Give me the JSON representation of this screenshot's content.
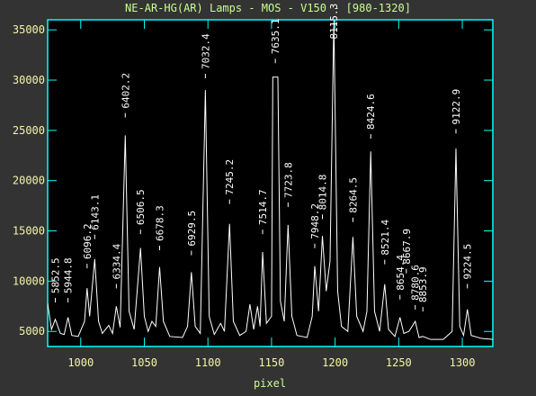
{
  "chart_data": {
    "type": "line",
    "title": "NE-AR-HG(AR) Lamps - MOS - V150 - [980-1320]",
    "xlabel": "pixel",
    "xlim": [
      974,
      1324
    ],
    "ylim": [
      3500,
      36000
    ],
    "xticks": [
      1000,
      1050,
      1100,
      1150,
      1200,
      1250,
      1300
    ],
    "yticks": [
      5000,
      10000,
      15000,
      20000,
      25000,
      30000,
      35000
    ],
    "series": [
      {
        "color": "#ffffff",
        "x": [
          974,
          977,
          980,
          984,
          987,
          990,
          993,
          998,
          1003,
          1005,
          1007,
          1011,
          1014,
          1017,
          1022,
          1025,
          1028,
          1031,
          1035,
          1038,
          1042,
          1047,
          1050,
          1053,
          1056,
          1059,
          1062,
          1065,
          1070,
          1080,
          1084,
          1087,
          1090,
          1094,
          1098,
          1101,
          1105,
          1110,
          1113,
          1117,
          1120,
          1125,
          1130,
          1133,
          1136,
          1139,
          1141,
          1143,
          1146,
          1150,
          1151,
          1155,
          1157,
          1160,
          1163,
          1166,
          1170,
          1178,
          1182,
          1184,
          1187,
          1190,
          1193,
          1196,
          1199,
          1202,
          1205,
          1210,
          1214,
          1217,
          1222,
          1225,
          1228,
          1231,
          1235,
          1239,
          1242,
          1247,
          1251,
          1254,
          1258,
          1263,
          1266,
          1269,
          1275,
          1285,
          1292,
          1295,
          1298,
          1301,
          1304,
          1307,
          1315,
          1324
        ],
        "values": [
          7800,
          5200,
          6200,
          4800,
          4700,
          6400,
          4600,
          4500,
          6000,
          9300,
          6500,
          12200,
          6000,
          4800,
          5600,
          4800,
          7500,
          5400,
          24500,
          7000,
          5200,
          13300,
          6500,
          5000,
          6000,
          5500,
          11400,
          6000,
          4500,
          4400,
          5500,
          10900,
          5500,
          4800,
          29000,
          6500,
          4700,
          5800,
          5000,
          15700,
          6000,
          4600,
          5000,
          7700,
          5200,
          7500,
          5500,
          12900,
          5800,
          6500,
          30300,
          30300,
          8000,
          6000,
          15600,
          6500,
          4600,
          4400,
          6500,
          11500,
          7000,
          14500,
          9000,
          12000,
          36000,
          9000,
          5500,
          5000,
          14400,
          6500,
          5000,
          7000,
          22900,
          7000,
          5000,
          9700,
          5200,
          4500,
          6400,
          4800,
          5000,
          6000,
          4400,
          4500,
          4200,
          4200,
          5000,
          23200,
          5500,
          4600,
          7200,
          4600,
          4300,
          4200
        ]
      }
    ],
    "annotations": [
      {
        "text": "5852.5",
        "x": 980,
        "y": 7700
      },
      {
        "text": "5944.8",
        "x": 990,
        "y": 7700
      },
      {
        "text": "6096.2",
        "x": 1005,
        "y": 11100
      },
      {
        "text": "6143.1",
        "x": 1011,
        "y": 14000
      },
      {
        "text": "6334.4",
        "x": 1028,
        "y": 9100
      },
      {
        "text": "6402.2",
        "x": 1035,
        "y": 26100
      },
      {
        "text": "6506.5",
        "x": 1047,
        "y": 14500
      },
      {
        "text": "6678.3",
        "x": 1062,
        "y": 12900
      },
      {
        "text": "6929.5",
        "x": 1087,
        "y": 12400
      },
      {
        "text": "7032.4",
        "x": 1098,
        "y": 30000
      },
      {
        "text": "7245.2",
        "x": 1117,
        "y": 17500
      },
      {
        "text": "7514.7",
        "x": 1143,
        "y": 14500
      },
      {
        "text": "7635.1",
        "x": 1153,
        "y": 31500
      },
      {
        "text": "7723.8",
        "x": 1163,
        "y": 17200
      },
      {
        "text": "7948.2",
        "x": 1184,
        "y": 13100
      },
      {
        "text": "8014.8",
        "x": 1190,
        "y": 16000
      },
      {
        "text": "8115.3",
        "x": 1199,
        "y": 33000
      },
      {
        "text": "8264.5",
        "x": 1214,
        "y": 15700
      },
      {
        "text": "8424.6",
        "x": 1228,
        "y": 24000
      },
      {
        "text": "8521.4",
        "x": 1239,
        "y": 11500
      },
      {
        "text": "8654.4",
        "x": 1251,
        "y": 8000
      },
      {
        "text": "8667.9",
        "x": 1256,
        "y": 10600
      },
      {
        "text": "8780.6",
        "x": 1263,
        "y": 7000
      },
      {
        "text": "8853.9",
        "x": 1269,
        "y": 6800
      },
      {
        "text": "9122.9",
        "x": 1295,
        "y": 24500
      },
      {
        "text": "9224.5",
        "x": 1304,
        "y": 9100
      }
    ]
  }
}
